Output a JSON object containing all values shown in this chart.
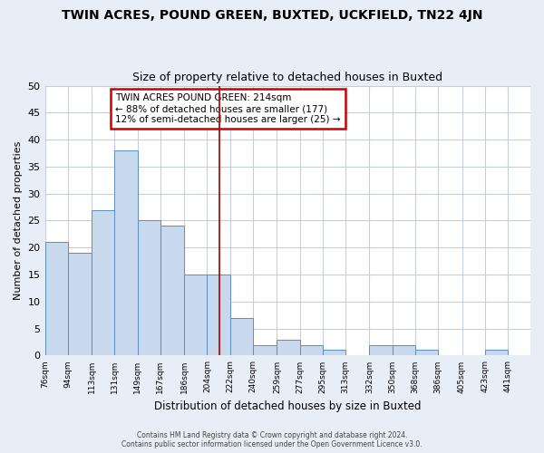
{
  "title": "TWIN ACRES, POUND GREEN, BUXTED, UCKFIELD, TN22 4JN",
  "subtitle": "Size of property relative to detached houses in Buxted",
  "xlabel": "Distribution of detached houses by size in Buxted",
  "ylabel": "Number of detached properties",
  "bin_labels": [
    "76sqm",
    "94sqm",
    "113sqm",
    "131sqm",
    "149sqm",
    "167sqm",
    "186sqm",
    "204sqm",
    "222sqm",
    "240sqm",
    "259sqm",
    "277sqm",
    "295sqm",
    "313sqm",
    "332sqm",
    "350sqm",
    "368sqm",
    "386sqm",
    "405sqm",
    "423sqm",
    "441sqm"
  ],
  "bin_edges": [
    76,
    94,
    113,
    131,
    149,
    167,
    186,
    204,
    222,
    240,
    259,
    277,
    295,
    313,
    332,
    350,
    368,
    386,
    405,
    423,
    441,
    459
  ],
  "bar_heights": [
    21,
    19,
    27,
    38,
    25,
    24,
    15,
    15,
    7,
    2,
    3,
    2,
    1,
    0,
    2,
    2,
    1,
    0,
    0,
    1,
    0
  ],
  "bar_color": "#c8d9ed",
  "bar_edge_color": "#5a8fc0",
  "vline_x": 214,
  "vline_color": "#aa1111",
  "ylim": [
    0,
    50
  ],
  "yticks": [
    0,
    5,
    10,
    15,
    20,
    25,
    30,
    35,
    40,
    45,
    50
  ],
  "annotation_title": "TWIN ACRES POUND GREEN: 214sqm",
  "annotation_line1": "← 88% of detached houses are smaller (177)",
  "annotation_line2": "12% of semi-detached houses are larger (25) →",
  "annotation_box_color": "#ffffff",
  "annotation_box_edge": "#cc0000",
  "footer_line1": "Contains HM Land Registry data © Crown copyright and database right 2024.",
  "footer_line2": "Contains public sector information licensed under the Open Government Licence v3.0.",
  "bg_color": "#e8eef5",
  "plot_bg_color": "#ffffff",
  "grid_color": "#c5cdd8"
}
